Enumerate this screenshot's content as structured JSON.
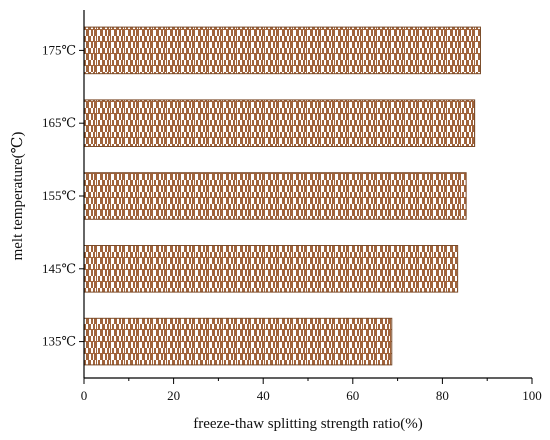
{
  "chart_data": {
    "type": "bar",
    "orientation": "horizontal",
    "categories": [
      "175℃",
      "165℃",
      "155℃",
      "145℃",
      "135℃"
    ],
    "values": [
      88.5,
      87.2,
      85.3,
      83.4,
      68.7
    ],
    "xlabel": "freeze-thaw splitting strength ratio(%)",
    "ylabel": "melt temperature(℃)",
    "xlim": [
      0,
      100
    ],
    "xticks": [
      0,
      20,
      40,
      60,
      80,
      100
    ],
    "grid": false,
    "bar_color": "#a0643c",
    "bar_pattern": "brick-hatch"
  }
}
